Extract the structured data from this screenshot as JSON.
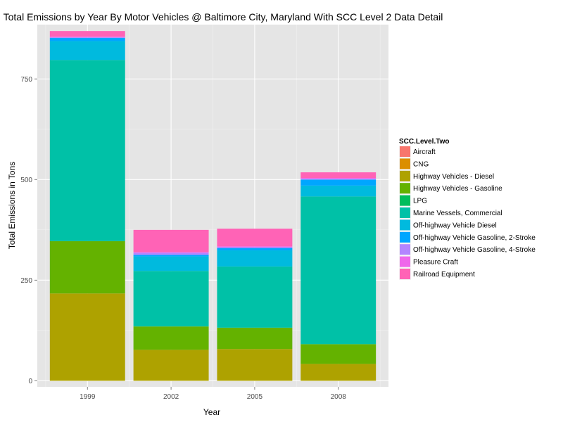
{
  "chart_data": {
    "type": "bar",
    "stacked": true,
    "title": "Total Emissions by Year By Motor Vehicles @ Baltimore City, Maryland With SCC Level 2 Data Detail",
    "xlabel": "Year",
    "ylabel": "Total Emissions in Tons",
    "categories": [
      "1999",
      "2002",
      "2005",
      "2008"
    ],
    "ylim": [
      -15,
      885
    ],
    "yticks": [
      0,
      250,
      500,
      750
    ],
    "ytick_labels": [
      "0",
      "250",
      "500",
      "750"
    ],
    "grid": true,
    "legend": {
      "title": "SCC.Level.Two",
      "position": "right"
    },
    "series": [
      {
        "name": "Aircraft",
        "color": "#F8766D",
        "values": [
          0,
          0,
          0,
          0
        ]
      },
      {
        "name": "CNG",
        "color": "#DB8E00",
        "values": [
          0,
          0,
          0,
          0
        ]
      },
      {
        "name": "Highway Vehicles - Diesel",
        "color": "#AEA200",
        "values": [
          217,
          77,
          79,
          42
        ]
      },
      {
        "name": "Highway Vehicles - Gasoline",
        "color": "#64B200",
        "values": [
          130,
          58,
          53,
          49
        ]
      },
      {
        "name": "LPG",
        "color": "#00BD5C",
        "values": [
          0,
          0,
          0,
          0
        ]
      },
      {
        "name": "Marine Vessels, Commercial",
        "color": "#00C1A7",
        "values": [
          450,
          138,
          152,
          367
        ]
      },
      {
        "name": "Off-highway Vehicle Diesel",
        "color": "#00BADE",
        "values": [
          47,
          36,
          40,
          27
        ]
      },
      {
        "name": "Off-highway Vehicle Gasoline, 2-Stroke",
        "color": "#00A6FF",
        "values": [
          8,
          4,
          6,
          15
        ]
      },
      {
        "name": "Off-highway Vehicle Gasoline, 4-Stroke",
        "color": "#B385FF",
        "values": [
          2,
          5,
          2,
          2
        ]
      },
      {
        "name": "Pleasure Craft",
        "color": "#EF67EB",
        "values": [
          1,
          2,
          2,
          2
        ]
      },
      {
        "name": "Railroad Equipment",
        "color": "#FF63B6",
        "values": [
          14,
          55,
          44,
          14
        ]
      }
    ]
  }
}
